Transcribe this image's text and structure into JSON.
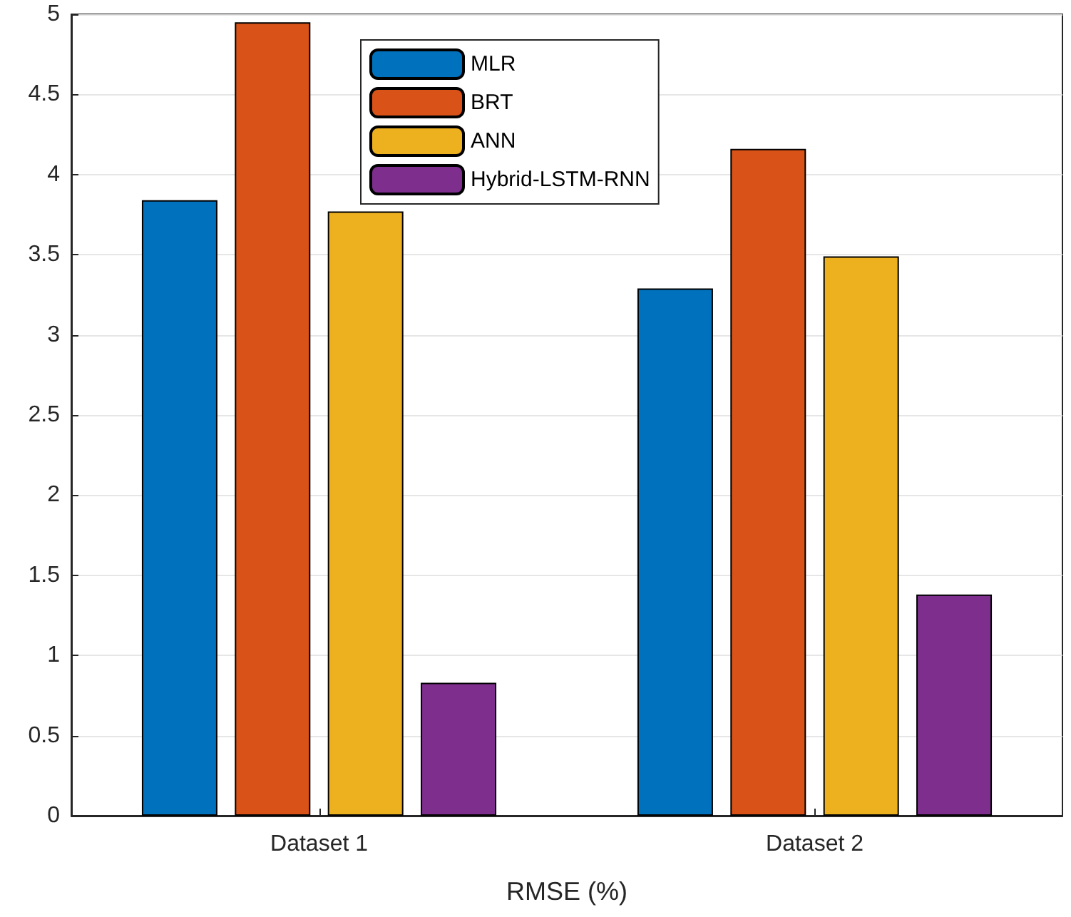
{
  "chart_data": {
    "type": "bar",
    "xlabel": "RMSE (%)",
    "categories": [
      "Dataset 1",
      "Dataset 2"
    ],
    "series": [
      {
        "name": "MLR",
        "color": "#0072bd",
        "values": [
          3.84,
          3.29
        ]
      },
      {
        "name": "BRT",
        "color": "#d95319",
        "values": [
          4.95,
          4.16
        ]
      },
      {
        "name": "ANN",
        "color": "#edb120",
        "values": [
          3.77,
          3.49
        ]
      },
      {
        "name": "Hybrid-LSTM-RNN",
        "color": "#7e2f8e",
        "values": [
          0.83,
          1.38
        ]
      }
    ],
    "ylim": [
      0,
      5
    ],
    "yticks": [
      0,
      0.5,
      1,
      1.5,
      2,
      2.5,
      3,
      3.5,
      4,
      4.5,
      5
    ],
    "grid": "y",
    "legend": "top"
  }
}
